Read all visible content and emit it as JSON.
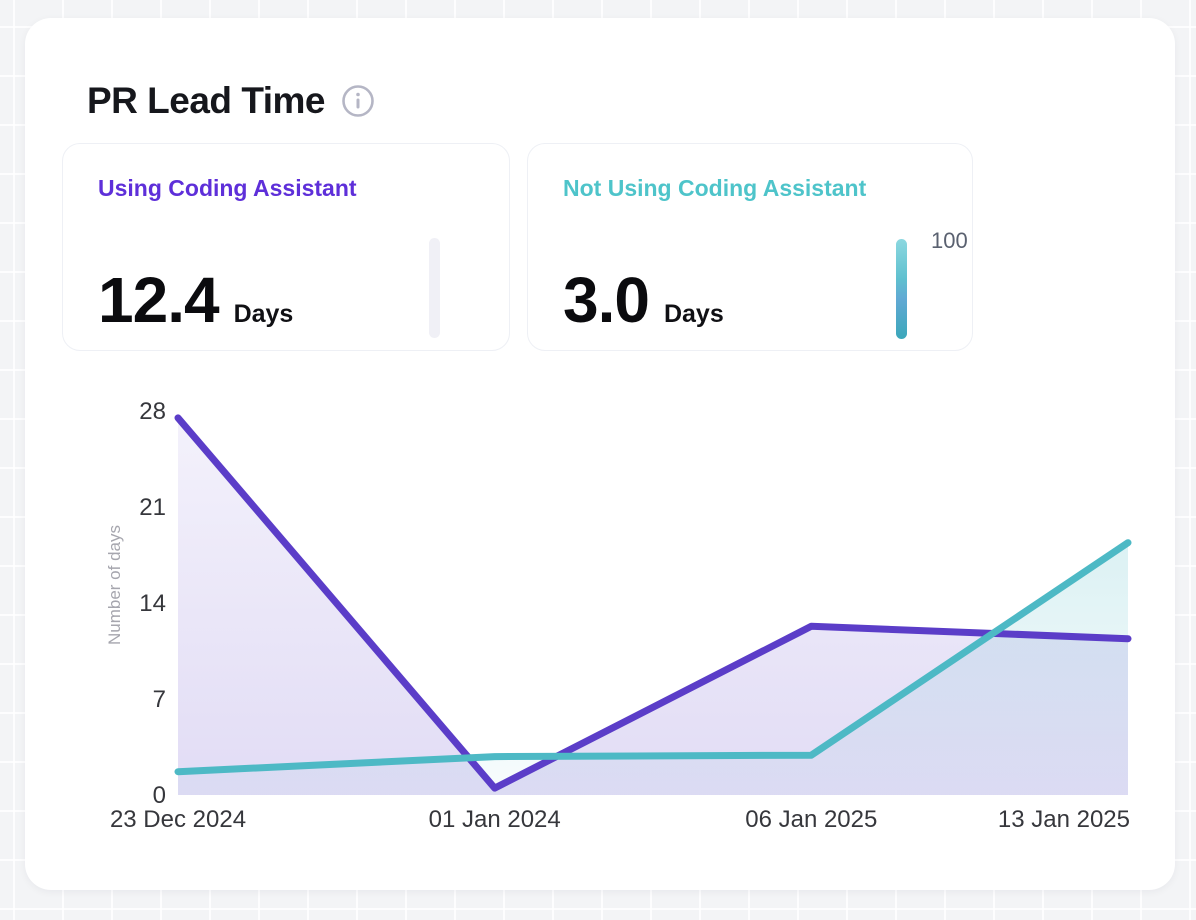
{
  "page": {
    "title": "PR Lead Time",
    "info_icon": "info-icon"
  },
  "metrics": [
    {
      "label": "Using Coding Assistant",
      "value": "12.4",
      "unit": "Days",
      "accent": "#5e2fd9",
      "bar_label": ""
    },
    {
      "label": "Not Using Coding Assistant",
      "value": "3.0",
      "unit": "Days",
      "accent": "#4ec4ca",
      "bar_label": "100"
    }
  ],
  "chart_data": {
    "type": "area",
    "x": [
      "23 Dec 2024",
      "01 Jan 2024",
      "06 Jan 2025",
      "13 Jan 2025"
    ],
    "series": [
      {
        "name": "Using Coding Assistant",
        "color": "#5b3dc8",
        "values": [
          27.5,
          0.5,
          12.3,
          11.4
        ]
      },
      {
        "name": "Not Using Coding Assistant",
        "color": "#4db9c5",
        "values": [
          1.7,
          2.8,
          2.9,
          18.4
        ]
      }
    ],
    "ylabel": "Number of days",
    "yticks": [
      0,
      7,
      14,
      21,
      28
    ],
    "ylim": [
      0,
      28
    ],
    "grid": false,
    "legend": "none"
  }
}
